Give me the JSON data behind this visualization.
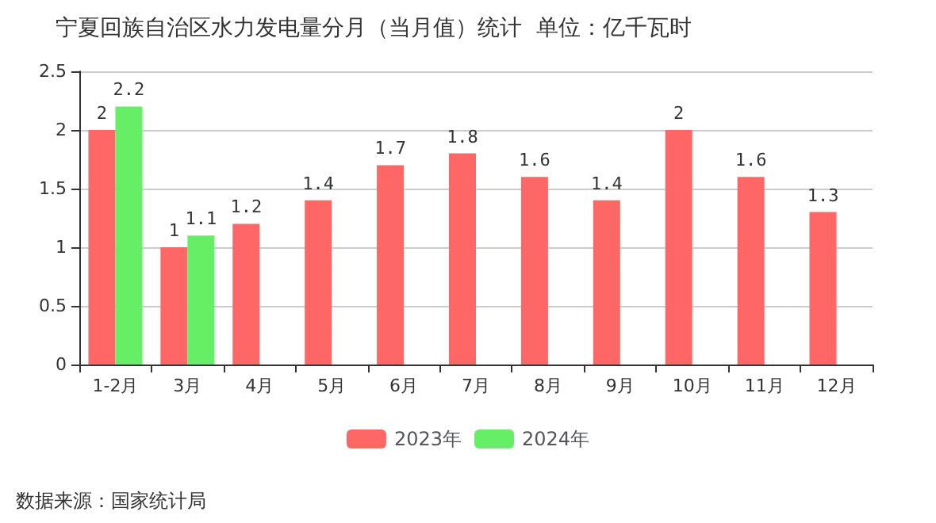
{
  "chart_data": {
    "type": "bar",
    "title": "宁夏回族自治区水力发电量分月（当月值）统计  单位：亿千瓦时",
    "categories": [
      "1-2月",
      "3月",
      "4月",
      "5月",
      "6月",
      "7月",
      "8月",
      "9月",
      "10月",
      "11月",
      "12月"
    ],
    "series": [
      {
        "name": "2023年",
        "color": "#ff6666",
        "values": [
          2,
          1,
          1.2,
          1.4,
          1.7,
          1.8,
          1.6,
          1.4,
          2,
          1.6,
          1.3
        ]
      },
      {
        "name": "2024年",
        "color": "#66ee66",
        "values": [
          2.2,
          1.1,
          null,
          null,
          null,
          null,
          null,
          null,
          null,
          null,
          null
        ]
      }
    ],
    "ylim": [
      0,
      2.5
    ],
    "yticks": [
      0,
      0.5,
      1,
      1.5,
      2,
      2.5
    ],
    "grid": "y",
    "legend": "bottom",
    "data_labels": true,
    "annotations": [
      "数据来源：国家统计局"
    ]
  }
}
